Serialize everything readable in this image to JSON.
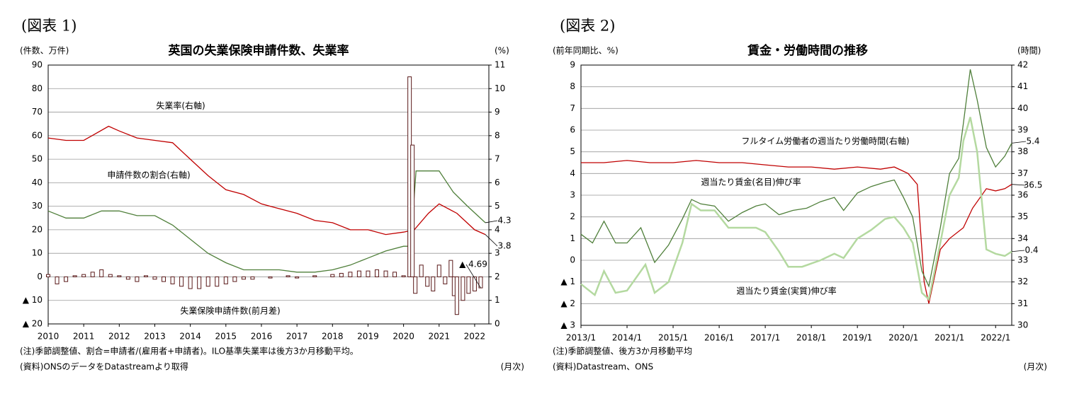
{
  "chart_data": [
    {
      "type": "line",
      "fig_label": "(図表 1)",
      "title": "英国の失業保険申請件数、失業率",
      "ylabel": "(件数、万件)",
      "y2label": "(%)",
      "notes": [
        "(注)季節調整値、割合=申請者/(雇用者+申請者)。ILO基準失業率は後方3か月移動平均。",
        "(資料)ONSのデータをDatastreamより取得"
      ],
      "frequency": "(月次)",
      "xlim": [
        2010,
        2022.4
      ],
      "xticks": [
        2010,
        2011,
        2012,
        2013,
        2014,
        2015,
        2016,
        2017,
        2018,
        2019,
        2020,
        2021,
        2022
      ],
      "ylim": [
        -20,
        90
      ],
      "yticks": [
        {
          "value": -20,
          "label": "▲ 20"
        },
        {
          "value": -10,
          "label": "▲ 10"
        },
        0,
        10,
        20,
        30,
        40,
        50,
        60,
        70,
        80,
        90
      ],
      "y2lim": [
        0,
        11
      ],
      "y2ticks": [
        0,
        1,
        2,
        3,
        4,
        5,
        6,
        7,
        8,
        9,
        10,
        11
      ],
      "grid": true,
      "series": [
        {
          "name": "失業率(右軸)",
          "kind": "line",
          "axis": "y2",
          "color": "#c00000",
          "end_label": "3.8",
          "x": [
            2010,
            2010.5,
            2011,
            2011.7,
            2012,
            2012.5,
            2013,
            2013.5,
            2014,
            2014.5,
            2015,
            2015.5,
            2016,
            2016.5,
            2017,
            2017.5,
            2018,
            2018.5,
            2019,
            2019.5,
            2020,
            2020.3,
            2020.7,
            2021,
            2021.5,
            2022,
            2022.3
          ],
          "values": [
            7.9,
            7.8,
            7.8,
            8.4,
            8.2,
            7.9,
            7.8,
            7.7,
            7.0,
            6.3,
            5.7,
            5.5,
            5.1,
            4.9,
            4.7,
            4.4,
            4.3,
            4.0,
            4.0,
            3.8,
            3.9,
            4.0,
            4.7,
            5.1,
            4.7,
            4.0,
            3.8
          ]
        },
        {
          "name": "申請件数の割合(右軸)",
          "kind": "line",
          "axis": "y2",
          "color": "#4f7f3a",
          "end_label": "4.3",
          "x": [
            2010,
            2010.5,
            2011,
            2011.5,
            2012,
            2012.5,
            2013,
            2013.5,
            2014,
            2014.5,
            2015,
            2015.5,
            2016,
            2016.5,
            2017,
            2017.5,
            2018,
            2018.5,
            2019,
            2019.5,
            2020,
            2020.2,
            2020.35,
            2020.7,
            2021,
            2021.4,
            2021.8,
            2022.3
          ],
          "values": [
            4.8,
            4.5,
            4.5,
            4.8,
            4.8,
            4.6,
            4.6,
            4.2,
            3.6,
            3.0,
            2.6,
            2.3,
            2.3,
            2.3,
            2.2,
            2.2,
            2.3,
            2.5,
            2.8,
            3.1,
            3.3,
            3.3,
            6.5,
            6.5,
            6.5,
            5.6,
            5.0,
            4.3
          ]
        },
        {
          "name": "失業保険申請件数(前月差)",
          "kind": "bar",
          "axis": "y",
          "color": "#5a1a1a",
          "end_label": "▲ 4.69",
          "x": [
            2010,
            2010.25,
            2010.5,
            2010.75,
            2011,
            2011.25,
            2011.5,
            2011.75,
            2012,
            2012.25,
            2012.5,
            2012.75,
            2013,
            2013.25,
            2013.5,
            2013.75,
            2014,
            2014.25,
            2014.5,
            2014.75,
            2015,
            2015.25,
            2015.5,
            2015.75,
            2016,
            2016.25,
            2016.5,
            2016.75,
            2017,
            2017.25,
            2017.5,
            2017.75,
            2018,
            2018.25,
            2018.5,
            2018.75,
            2019,
            2019.25,
            2019.5,
            2019.75,
            2020,
            2020.17,
            2020.25,
            2020.33,
            2020.5,
            2020.67,
            2020.83,
            2021,
            2021.17,
            2021.33,
            2021.42,
            2021.5,
            2021.67,
            2021.83,
            2022,
            2022.17
          ],
          "values": [
            1,
            -3,
            -2,
            0.5,
            1,
            2,
            3,
            1,
            0.5,
            -1,
            -2,
            0.5,
            -1,
            -2,
            -3,
            -4,
            -5,
            -5,
            -4,
            -4,
            -3,
            -2,
            -1,
            -1,
            0,
            -0.5,
            0,
            0.5,
            -0.5,
            0,
            0.5,
            0,
            1,
            1.5,
            2,
            2.5,
            2.5,
            3,
            2.5,
            2,
            0.5,
            85,
            56,
            -7,
            5,
            -4,
            -6,
            5,
            -3,
            7,
            -8,
            -16,
            -10,
            -7,
            -6,
            -4.69
          ]
        }
      ]
    },
    {
      "type": "line",
      "fig_label": "(図表 2)",
      "title": "賃金・労働時間の推移",
      "ylabel": "(前年同期比、%)",
      "y2label": "(時間)",
      "notes": [
        "(注)季節調整値、後方3か月移動平均",
        "(資料)Datastream、ONS"
      ],
      "frequency": "(月次)",
      "xlim": [
        2013,
        2022.35
      ],
      "xticks": [
        {
          "value": 2013,
          "label": "2013/1"
        },
        {
          "value": 2014,
          "label": "2014/1"
        },
        {
          "value": 2015,
          "label": "2015/1"
        },
        {
          "value": 2016,
          "label": "2016/1"
        },
        {
          "value": 2017,
          "label": "2017/1"
        },
        {
          "value": 2018,
          "label": "2018/1"
        },
        {
          "value": 2019,
          "label": "2019/1"
        },
        {
          "value": 2020,
          "label": "2020/1"
        },
        {
          "value": 2021,
          "label": "2021/1"
        },
        {
          "value": 2022,
          "label": "2022/1"
        }
      ],
      "ylim": [
        -3,
        9
      ],
      "yticks": [
        {
          "value": -3,
          "label": "▲ 3"
        },
        {
          "value": -2,
          "label": "▲ 2"
        },
        {
          "value": -1,
          "label": "▲ 1"
        },
        0,
        1,
        2,
        3,
        4,
        5,
        6,
        7,
        8,
        9
      ],
      "y2lim": [
        30,
        42
      ],
      "y2ticks": [
        30,
        31,
        32,
        33,
        34,
        35,
        36,
        37,
        38,
        39,
        40,
        41,
        42
      ],
      "grid": true,
      "series": [
        {
          "name": "フルタイム労働者の週当たり労働時間(右軸)",
          "kind": "line",
          "axis": "y2",
          "color": "#c00000",
          "end_label": "36.5",
          "x": [
            2013,
            2013.5,
            2014,
            2014.5,
            2015,
            2015.5,
            2016,
            2016.5,
            2017,
            2017.5,
            2018,
            2018.5,
            2019,
            2019.5,
            2019.8,
            2020.1,
            2020.3,
            2020.45,
            2020.55,
            2020.8,
            2021,
            2021.3,
            2021.5,
            2021.8,
            2022,
            2022.2,
            2022.35
          ],
          "values": [
            37.5,
            37.5,
            37.6,
            37.5,
            37.5,
            37.6,
            37.5,
            37.5,
            37.4,
            37.3,
            37.3,
            37.2,
            37.3,
            37.2,
            37.3,
            37.0,
            36.5,
            32.0,
            31.0,
            33.5,
            34.0,
            34.5,
            35.4,
            36.3,
            36.2,
            36.3,
            36.5
          ]
        },
        {
          "name": "週当たり賃金(名目)伸び率",
          "kind": "line",
          "axis": "y",
          "color": "#4f7f3a",
          "end_label": "5.4",
          "x": [
            2013,
            2013.25,
            2013.5,
            2013.75,
            2014,
            2014.3,
            2014.6,
            2014.9,
            2015.2,
            2015.4,
            2015.6,
            2015.9,
            2016.2,
            2016.5,
            2016.8,
            2017,
            2017.3,
            2017.6,
            2017.9,
            2018.2,
            2018.5,
            2018.7,
            2019,
            2019.3,
            2019.6,
            2019.8,
            2020,
            2020.2,
            2020.4,
            2020.55,
            2020.8,
            2021,
            2021.2,
            2021.3,
            2021.45,
            2021.6,
            2021.8,
            2022,
            2022.2,
            2022.35
          ],
          "values": [
            1.2,
            0.8,
            1.8,
            0.8,
            0.8,
            1.5,
            -0.1,
            0.7,
            1.9,
            2.8,
            2.6,
            2.5,
            1.8,
            2.2,
            2.5,
            2.6,
            2.1,
            2.3,
            2.4,
            2.7,
            2.9,
            2.3,
            3.1,
            3.4,
            3.6,
            3.7,
            2.9,
            2.0,
            -0.5,
            -1.2,
            1.5,
            4.0,
            4.7,
            6.3,
            8.8,
            7.4,
            5.2,
            4.3,
            4.8,
            5.4
          ]
        },
        {
          "name": "週当たり賃金(実質)伸び率",
          "kind": "line",
          "axis": "y",
          "color": "#b4d9a0",
          "end_label": "0.4",
          "x": [
            2013,
            2013.3,
            2013.5,
            2013.75,
            2014,
            2014.4,
            2014.6,
            2014.9,
            2015.2,
            2015.4,
            2015.6,
            2015.9,
            2016.2,
            2016.5,
            2016.8,
            2017,
            2017.3,
            2017.5,
            2017.8,
            2018.2,
            2018.5,
            2018.7,
            2019,
            2019.3,
            2019.6,
            2019.8,
            2020,
            2020.2,
            2020.4,
            2020.55,
            2020.8,
            2021,
            2021.2,
            2021.3,
            2021.45,
            2021.6,
            2021.8,
            2022,
            2022.2,
            2022.35
          ],
          "values": [
            -1.1,
            -1.6,
            -0.5,
            -1.5,
            -1.4,
            -0.2,
            -1.5,
            -1.0,
            0.8,
            2.6,
            2.3,
            2.3,
            1.5,
            1.5,
            1.5,
            1.3,
            0.4,
            -0.3,
            -0.3,
            0.0,
            0.3,
            0.1,
            1.0,
            1.4,
            1.9,
            2.0,
            1.5,
            0.8,
            -1.5,
            -1.8,
            0.8,
            3.0,
            3.8,
            5.5,
            6.6,
            5.0,
            0.5,
            0.3,
            0.2,
            0.4
          ]
        }
      ]
    }
  ]
}
